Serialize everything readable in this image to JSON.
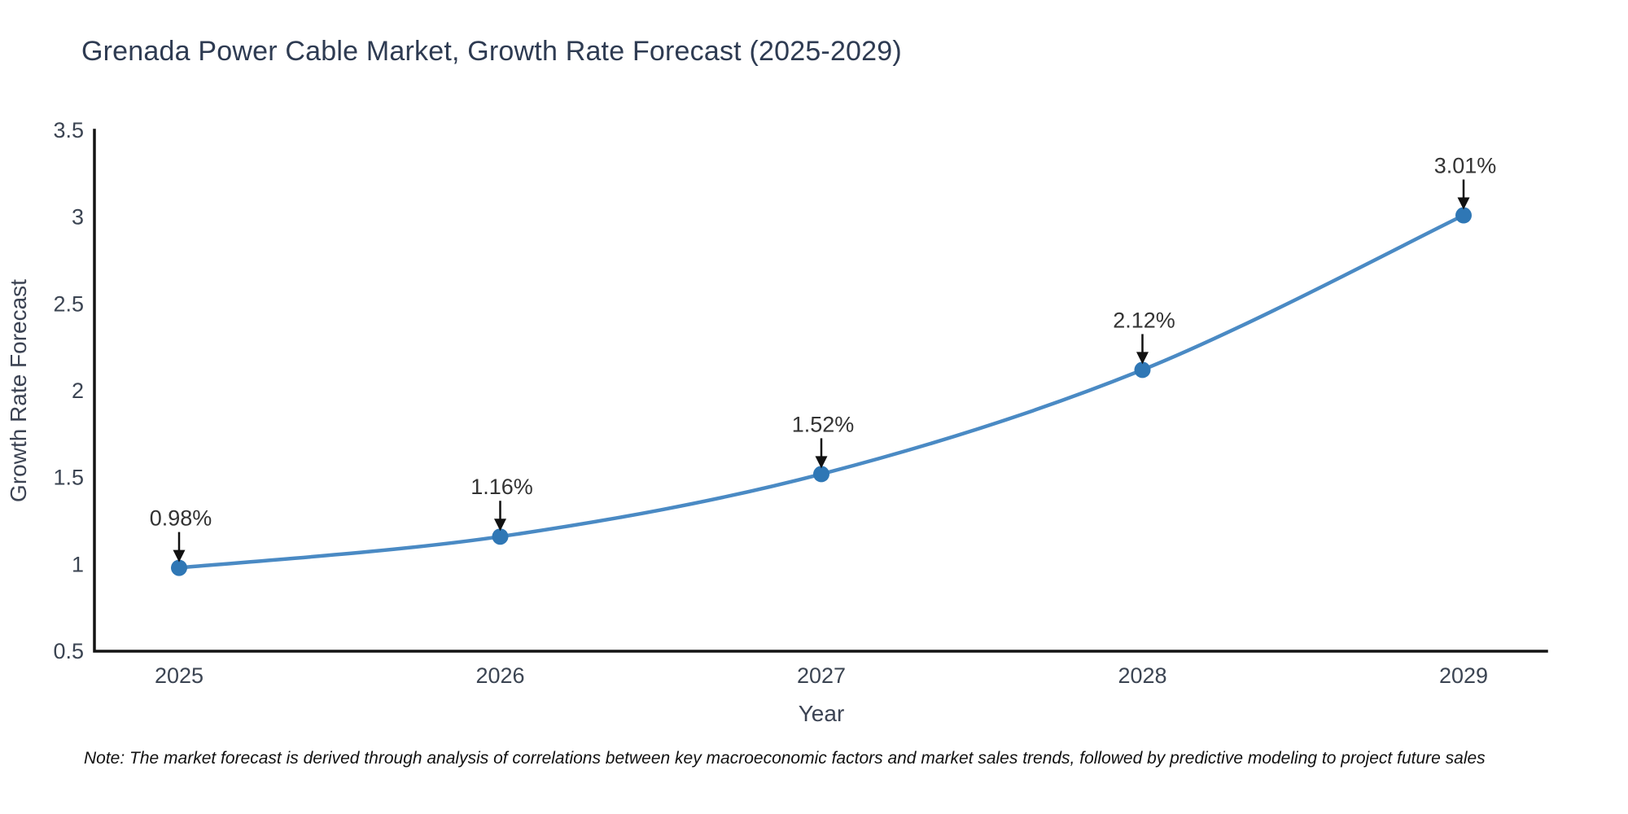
{
  "chart_data": {
    "type": "line",
    "title": "Grenada Power Cable Market, Growth Rate Forecast (2025-2029)",
    "xlabel": "Year",
    "ylabel": "Growth Rate Forecast",
    "categories": [
      "2025",
      "2026",
      "2027",
      "2028",
      "2029"
    ],
    "series": [
      {
        "name": "Growth Rate Forecast",
        "values": [
          0.98,
          1.16,
          1.52,
          2.12,
          3.01
        ]
      }
    ],
    "point_labels": [
      "0.98%",
      "1.16%",
      "1.52%",
      "2.12%",
      "3.01%"
    ],
    "ylim": [
      0.5,
      3.5
    ],
    "yticks": [
      "0.5",
      "1",
      "1.5",
      "2",
      "2.5",
      "3",
      "3.5"
    ],
    "grid": false,
    "legend": "none",
    "colors": {
      "line": "#4a8ac4",
      "marker": "#2f77b5",
      "axis": "#141414",
      "title": "#2e3b52",
      "tick": "#3b4452",
      "axis_title": "#3c4353",
      "annotation_text": "#333333",
      "annotation_arrow": "#111111"
    }
  },
  "note": {
    "text": "Note: The market forecast is derived through analysis of correlations between key macroeconomic factors and market sales trends, followed by predictive modeling to project future sales"
  }
}
